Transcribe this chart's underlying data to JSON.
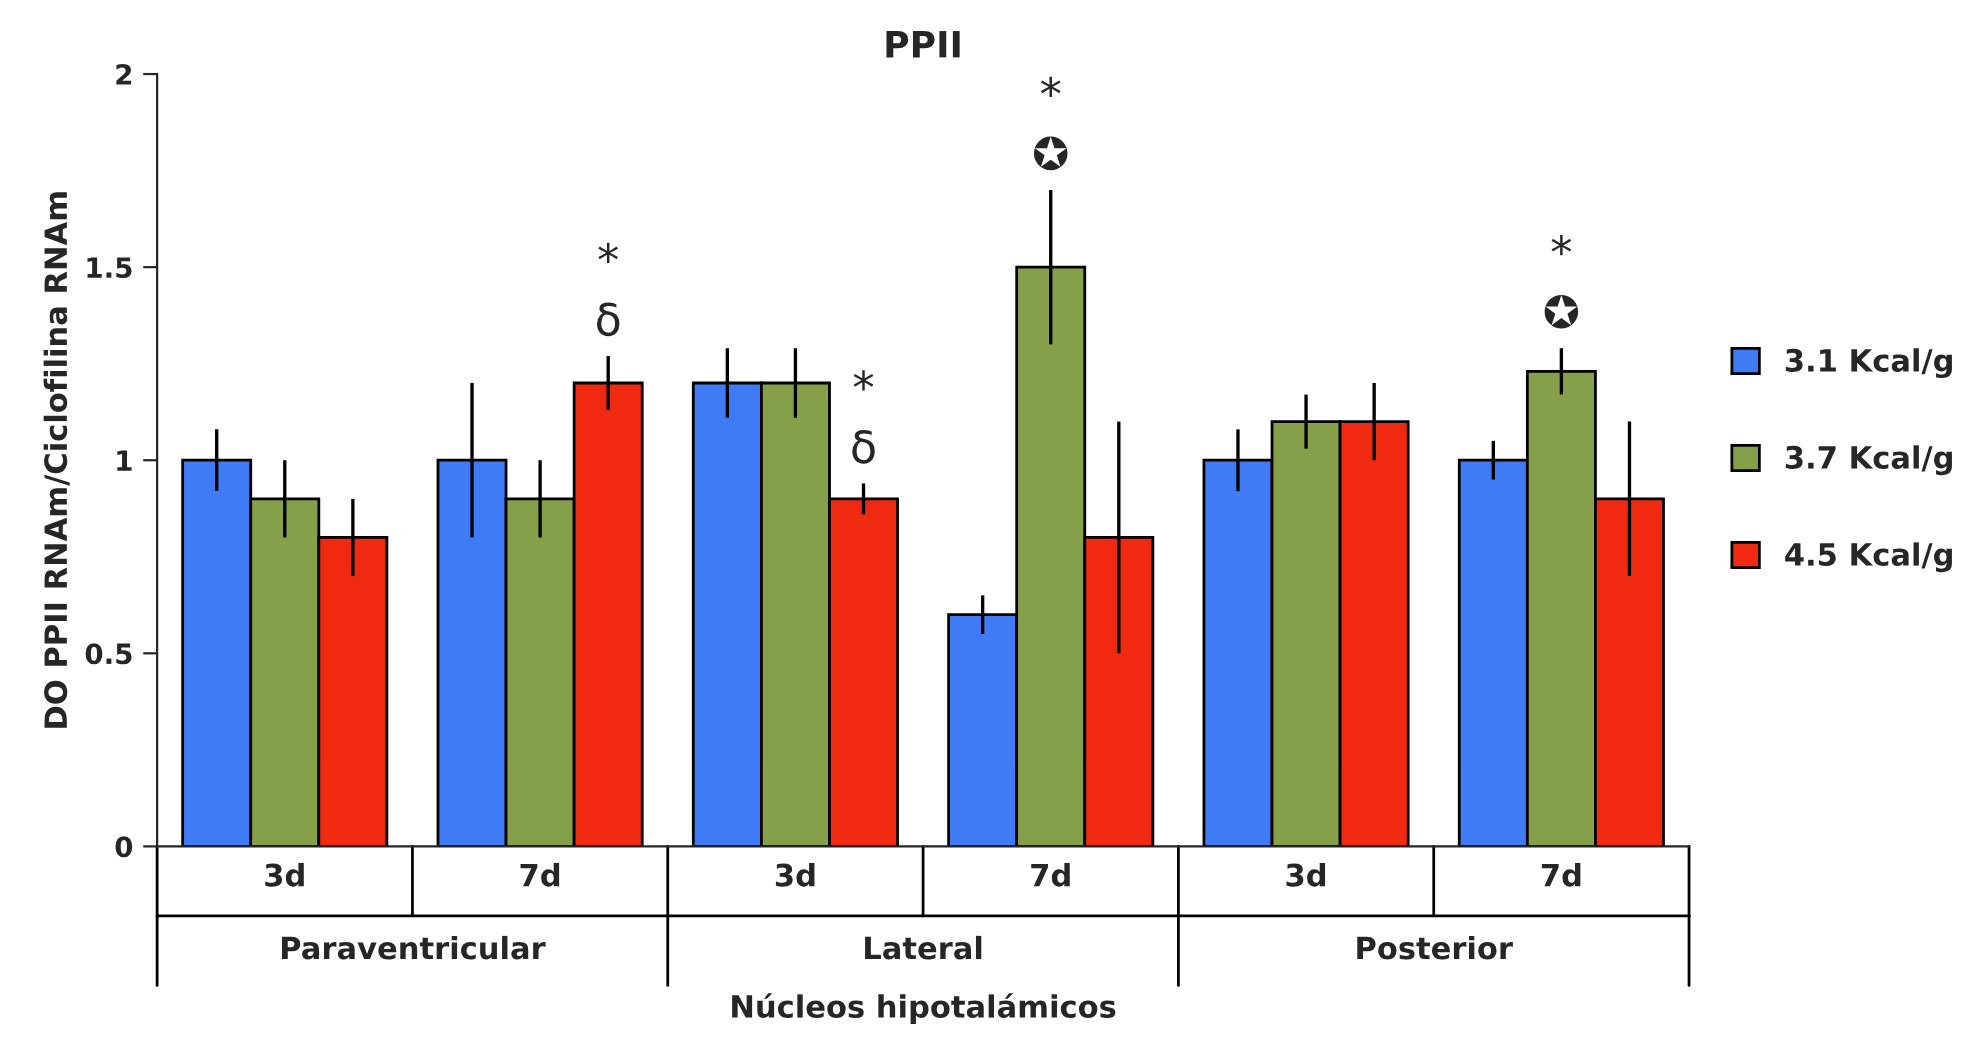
{
  "chart_data": {
    "type": "bar",
    "title": "PPII",
    "ylabel": "DO PPII RNAm/Ciclofilina RNAm",
    "xlabel": "Núcleos hipotalámicos",
    "categories": [
      "3d",
      "7d",
      "3d",
      "7d",
      "3d",
      "7d"
    ],
    "series": [
      {
        "name": "3.1 Kcal/g",
        "color": "#3f7bf5",
        "values": [
          1.0,
          1.0,
          1.2,
          0.6,
          1.0,
          1.0
        ],
        "errors": [
          0.08,
          0.2,
          0.09,
          0.05,
          0.08,
          0.05
        ]
      },
      {
        "name": "3.7 Kcal/g",
        "color": "#86a04a",
        "values": [
          0.9,
          0.9,
          1.2,
          1.5,
          1.1,
          1.23
        ],
        "errors": [
          0.1,
          0.1,
          0.09,
          0.2,
          0.07,
          0.06
        ],
        "value_labels": [
          null,
          null,
          null,
          "*\n✪",
          null,
          "*\n✪"
        ]
      },
      {
        "name": "4.5 Kcal/g",
        "color": "#f02a10",
        "values": [
          0.8,
          1.2,
          0.9,
          0.8,
          1.1,
          0.9
        ],
        "errors": [
          0.1,
          0.07,
          0.04,
          0.3,
          0.1,
          0.2
        ],
        "value_labels": [
          null,
          "*\nδ",
          "*\nδ",
          null,
          null,
          null
        ]
      }
    ],
    "ylim": [
      0,
      2
    ],
    "yticks": [
      0,
      0.5,
      1,
      1.5,
      2
    ],
    "grid": false,
    "legend": "right",
    "annotations": [
      "Paraventricular",
      "Lateral",
      "Posterior"
    ]
  }
}
